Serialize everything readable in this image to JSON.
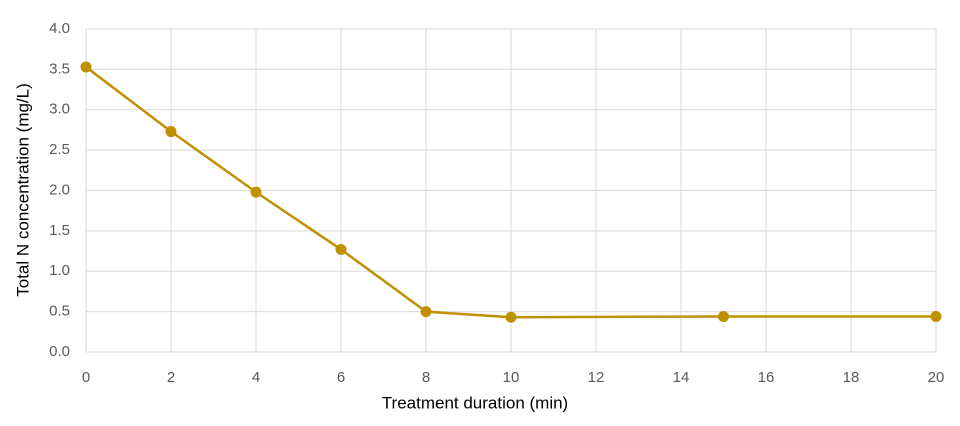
{
  "chart_data": {
    "type": "line",
    "x_label": "Treatment duration (min)",
    "y_label": "Total N concentration (mg/L)",
    "x": [
      0,
      2,
      4,
      6,
      8,
      10,
      15,
      20
    ],
    "values": [
      3.53,
      2.73,
      1.98,
      1.27,
      0.5,
      0.43,
      0.44,
      0.44
    ],
    "color": "#bf9000",
    "xlim": [
      0,
      20
    ],
    "xticks": [
      0,
      2,
      4,
      6,
      8,
      10,
      12,
      14,
      16,
      18,
      20
    ],
    "ylim": [
      0,
      4
    ],
    "yticks": [
      {
        "value": 0,
        "label": "0.0"
      },
      0.5,
      {
        "value": 1,
        "label": "1.0"
      },
      1.5,
      {
        "value": 2,
        "label": "2.0"
      },
      2.5,
      {
        "value": 3,
        "label": "3.0"
      },
      3.5,
      {
        "value": 4,
        "label": "4.0"
      }
    ],
    "grid": true
  }
}
